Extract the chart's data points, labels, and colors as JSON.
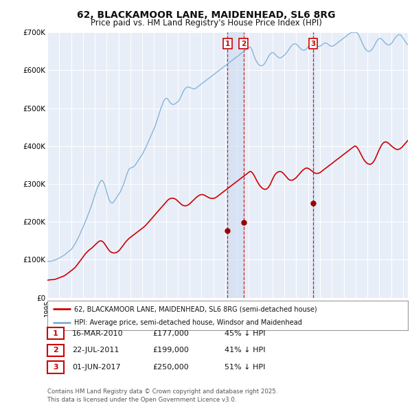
{
  "title_line1": "62, BLACKAMOOR LANE, MAIDENHEAD, SL6 8RG",
  "title_line2": "Price paid vs. HM Land Registry's House Price Index (HPI)",
  "background_color": "#ffffff",
  "plot_bg_color": "#e8eef8",
  "grid_color": "#ffffff",
  "hpi_color": "#7aaed6",
  "price_color": "#cc0000",
  "ylim": [
    0,
    700000
  ],
  "yticks": [
    0,
    100000,
    200000,
    300000,
    400000,
    500000,
    600000,
    700000
  ],
  "ytick_labels": [
    "£0",
    "£100K",
    "£200K",
    "£300K",
    "£400K",
    "£500K",
    "£600K",
    "£700K"
  ],
  "transactions": [
    {
      "date": "2010-03-16",
      "price": 177000,
      "label": "1"
    },
    {
      "date": "2011-07-22",
      "price": 199000,
      "label": "2"
    },
    {
      "date": "2017-06-01",
      "price": 250000,
      "label": "3"
    }
  ],
  "legend_property_label": "62, BLACKAMOOR LANE, MAIDENHEAD, SL6 8RG (semi-detached house)",
  "legend_hpi_label": "HPI: Average price, semi-detached house, Windsor and Maidenhead",
  "transaction_table": [
    {
      "num": "1",
      "date": "16-MAR-2010",
      "price": "£177,000",
      "note": "45% ↓ HPI"
    },
    {
      "num": "2",
      "date": "22-JUL-2011",
      "price": "£199,000",
      "note": "41% ↓ HPI"
    },
    {
      "num": "3",
      "date": "01-JUN-2017",
      "price": "£250,000",
      "note": "51% ↓ HPI"
    }
  ],
  "footer": "Contains HM Land Registry data © Crown copyright and database right 2025.\nThis data is licensed under the Open Government Licence v3.0.",
  "hpi_data_values": [
    96000,
    96500,
    96200,
    95800,
    96500,
    97000,
    98500,
    99000,
    99500,
    100500,
    102000,
    103500,
    104500,
    106000,
    107500,
    109000,
    110500,
    112000,
    114000,
    116500,
    119000,
    121000,
    123000,
    125000,
    127000,
    130000,
    134000,
    138000,
    142000,
    147000,
    152000,
    157000,
    162000,
    168000,
    174000,
    180000,
    186000,
    192000,
    198000,
    204000,
    210000,
    217000,
    224000,
    231000,
    238000,
    246000,
    254000,
    262000,
    270000,
    278000,
    286000,
    292000,
    298000,
    304000,
    308000,
    310000,
    308000,
    304000,
    298000,
    290000,
    280000,
    270000,
    262000,
    256000,
    252000,
    250000,
    250000,
    252000,
    256000,
    260000,
    264000,
    268000,
    272000,
    276000,
    280000,
    286000,
    292000,
    298000,
    306000,
    314000,
    322000,
    330000,
    336000,
    340000,
    342000,
    343000,
    344000,
    345000,
    347000,
    350000,
    354000,
    358000,
    362000,
    366000,
    370000,
    374000,
    378000,
    383000,
    388000,
    393000,
    398000,
    404000,
    410000,
    416000,
    422000,
    428000,
    434000,
    440000,
    446000,
    452000,
    460000,
    468000,
    476000,
    484000,
    492000,
    500000,
    507000,
    514000,
    520000,
    524000,
    526000,
    526000,
    524000,
    520000,
    516000,
    513000,
    511000,
    510000,
    510000,
    511000,
    513000,
    515000,
    517000,
    520000,
    524000,
    529000,
    535000,
    541000,
    546000,
    550000,
    553000,
    555000,
    556000,
    556000,
    555000,
    554000,
    553000,
    552000,
    551000,
    551000,
    552000,
    554000,
    556000,
    558000,
    560000,
    562000,
    564000,
    566000,
    568000,
    570000,
    572000,
    574000,
    576000,
    578000,
    580000,
    582000,
    584000,
    586000,
    588000,
    590000,
    592000,
    594000,
    596000,
    598000,
    600000,
    602000,
    604000,
    606000,
    608000,
    610000,
    612000,
    614000,
    616000,
    618000,
    620000,
    622000,
    624000,
    626000,
    628000,
    630000,
    632000,
    634000,
    636000,
    638000,
    640000,
    642000,
    644000,
    646000,
    648000,
    650000,
    652000,
    654000,
    656000,
    658000,
    660000,
    662000,
    660000,
    655000,
    648000,
    640000,
    633000,
    627000,
    622000,
    618000,
    615000,
    613000,
    612000,
    612000,
    613000,
    615000,
    618000,
    622000,
    627000,
    632000,
    637000,
    641000,
    644000,
    646000,
    647000,
    646000,
    644000,
    641000,
    638000,
    636000,
    634000,
    633000,
    633000,
    634000,
    636000,
    638000,
    640000,
    643000,
    646000,
    649000,
    653000,
    657000,
    661000,
    664000,
    667000,
    669000,
    670000,
    670000,
    669000,
    667000,
    664000,
    661000,
    658000,
    656000,
    654000,
    653000,
    653000,
    654000,
    656000,
    659000,
    662000,
    665000,
    668000,
    670000,
    671000,
    671000,
    670000,
    668000,
    666000,
    664000,
    663000,
    663000,
    664000,
    665000,
    667000,
    669000,
    671000,
    672000,
    672000,
    671000,
    669000,
    667000,
    665000,
    664000,
    664000,
    664000,
    665000,
    667000,
    669000,
    671000,
    673000,
    675000,
    677000,
    679000,
    681000,
    683000,
    685000,
    687000,
    689000,
    691000,
    693000,
    695000,
    697000,
    699000,
    700000,
    700000,
    700000,
    700000,
    700000,
    700000,
    698000,
    694000,
    689000,
    683000,
    677000,
    671000,
    665000,
    660000,
    656000,
    653000,
    651000,
    650000,
    650000,
    651000,
    653000,
    656000,
    660000,
    665000,
    670000,
    675000,
    679000,
    682000,
    684000,
    684000,
    683000,
    681000,
    678000,
    675000,
    672000,
    670000,
    668000,
    667000,
    667000,
    668000,
    670000,
    673000,
    677000,
    681000,
    685000,
    688000,
    691000,
    693000,
    694000,
    694000,
    692000,
    689000,
    685000,
    681000,
    677000,
    673000,
    670000,
    667000,
    665000,
    664000,
    663000,
    663000,
    664000,
    666000
  ],
  "price_data_values": [
    46000,
    46500,
    47000,
    47200,
    47400,
    47600,
    47800,
    48000,
    48500,
    49500,
    50500,
    51500,
    52500,
    53500,
    54500,
    55500,
    56500,
    57500,
    59000,
    61000,
    63000,
    65000,
    67000,
    69000,
    71000,
    73000,
    75000,
    77000,
    79500,
    82500,
    86000,
    89500,
    93000,
    96500,
    100000,
    103500,
    107000,
    110500,
    114000,
    117000,
    120000,
    122500,
    125000,
    127000,
    129000,
    131000,
    133500,
    136000,
    138500,
    141000,
    143500,
    146000,
    148000,
    149500,
    150000,
    149500,
    148000,
    145500,
    142000,
    138000,
    134000,
    130000,
    126500,
    123500,
    121000,
    119500,
    118500,
    118000,
    118000,
    118500,
    119500,
    121000,
    123000,
    125500,
    128500,
    132000,
    135500,
    139000,
    142500,
    146000,
    149000,
    152000,
    154500,
    157000,
    159000,
    161000,
    163000,
    165000,
    167000,
    169000,
    171000,
    173000,
    175000,
    177000,
    179000,
    181000,
    183000,
    185000,
    187000,
    189500,
    192000,
    195000,
    198000,
    201000,
    204000,
    207000,
    210000,
    213000,
    216000,
    219000,
    222000,
    225000,
    228000,
    231000,
    234000,
    237000,
    240000,
    243000,
    246000,
    249000,
    252000,
    255000,
    257500,
    259500,
    261000,
    262000,
    262500,
    262500,
    262000,
    261000,
    259500,
    257500,
    255000,
    252500,
    250000,
    247500,
    245500,
    244000,
    243000,
    242500,
    242500,
    243000,
    244000,
    245500,
    247500,
    250000,
    252500,
    255000,
    257500,
    260000,
    262500,
    265000,
    267000,
    269000,
    270500,
    271500,
    272000,
    272000,
    271500,
    270500,
    269000,
    267500,
    266000,
    264500,
    263500,
    262500,
    262000,
    262000,
    262000,
    262500,
    263500,
    265000,
    267000,
    269000,
    271000,
    273000,
    275000,
    277000,
    279000,
    281000,
    283000,
    285000,
    287000,
    289000,
    291000,
    293000,
    295000,
    297000,
    299000,
    301000,
    303000,
    305000,
    307000,
    309000,
    311000,
    313000,
    315000,
    317000,
    319000,
    321000,
    323000,
    325000,
    327000,
    329000,
    331000,
    333000,
    333000,
    331000,
    328000,
    324000,
    319000,
    314000,
    309000,
    304000,
    300000,
    296000,
    293000,
    290000,
    288000,
    287000,
    286000,
    286000,
    287000,
    289000,
    292000,
    296000,
    301000,
    307000,
    313000,
    318000,
    323000,
    326000,
    329000,
    331000,
    332000,
    333000,
    333000,
    332000,
    330000,
    328000,
    325000,
    322000,
    319000,
    316000,
    313000,
    311000,
    310000,
    310000,
    310000,
    311000,
    313000,
    315000,
    317000,
    320000,
    323000,
    326000,
    329000,
    332000,
    335000,
    337000,
    339000,
    341000,
    342000,
    342000,
    341000,
    340000,
    338000,
    336000,
    334000,
    332000,
    330000,
    329000,
    328000,
    328000,
    328000,
    329000,
    330000,
    332000,
    334000,
    336000,
    338000,
    340000,
    342000,
    344000,
    346000,
    348000,
    350000,
    352000,
    354000,
    356000,
    358000,
    360000,
    362000,
    364000,
    366000,
    368000,
    370000,
    372000,
    374000,
    376000,
    378000,
    380000,
    382000,
    384000,
    386000,
    388000,
    390000,
    392000,
    394000,
    396000,
    398000,
    400000,
    400000,
    398000,
    395000,
    391000,
    386000,
    381000,
    376000,
    371000,
    366000,
    362000,
    359000,
    356000,
    354000,
    353000,
    352000,
    352000,
    353000,
    355000,
    358000,
    362000,
    367000,
    373000,
    379000,
    385000,
    391000,
    396000,
    401000,
    405000,
    408000,
    410000,
    411000,
    411000,
    410000,
    408000,
    406000,
    404000,
    401000,
    399000,
    397000,
    395000,
    393000,
    392000,
    391000,
    391000,
    392000,
    393000,
    395000,
    397000,
    400000,
    403000,
    406000,
    409000,
    412000,
    415000,
    418000,
    421000,
    423000,
    425000,
    427000,
    428000
  ],
  "start_date": "1995-01-01",
  "x_start": "1995-01-01",
  "x_end": "2025-06-01"
}
